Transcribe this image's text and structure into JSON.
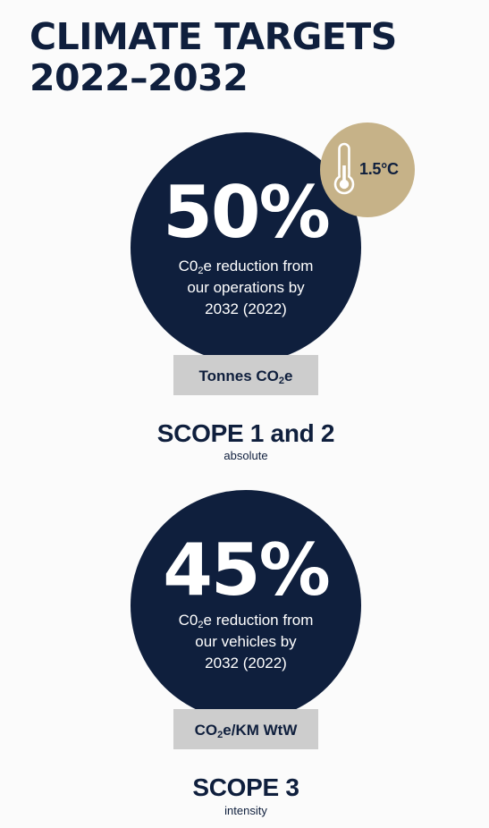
{
  "title": {
    "line1": "CLIMATE TARGETS",
    "line2": "2022–2032"
  },
  "colors": {
    "navy": "#0f1f3d",
    "gold": "#c6b288",
    "grey_box": "#cdcdcd",
    "background": "#fbfbfb"
  },
  "badge": {
    "icon": "thermometer-icon",
    "label": "1.5°C"
  },
  "targets": [
    {
      "percent": "50%",
      "desc_pre": "C0",
      "desc_sub": "2",
      "desc_line1_post": "e reduction from",
      "desc_line2": "our operations by",
      "desc_line3": "2032 (2022)",
      "unit_pre": "Tonnes CO",
      "unit_sub": "2",
      "unit_post": "e",
      "scope_title": "SCOPE 1 and 2",
      "scope_sub": "absolute"
    },
    {
      "percent": "45%",
      "desc_pre": "C0",
      "desc_sub": "2",
      "desc_line1_post": "e reduction from",
      "desc_line2": "our vehicles by",
      "desc_line3": "2032 (2022)",
      "unit_pre": "CO",
      "unit_sub": "2",
      "unit_post": "e/KM WtW",
      "scope_title": "SCOPE 3",
      "scope_sub": "intensity"
    }
  ]
}
